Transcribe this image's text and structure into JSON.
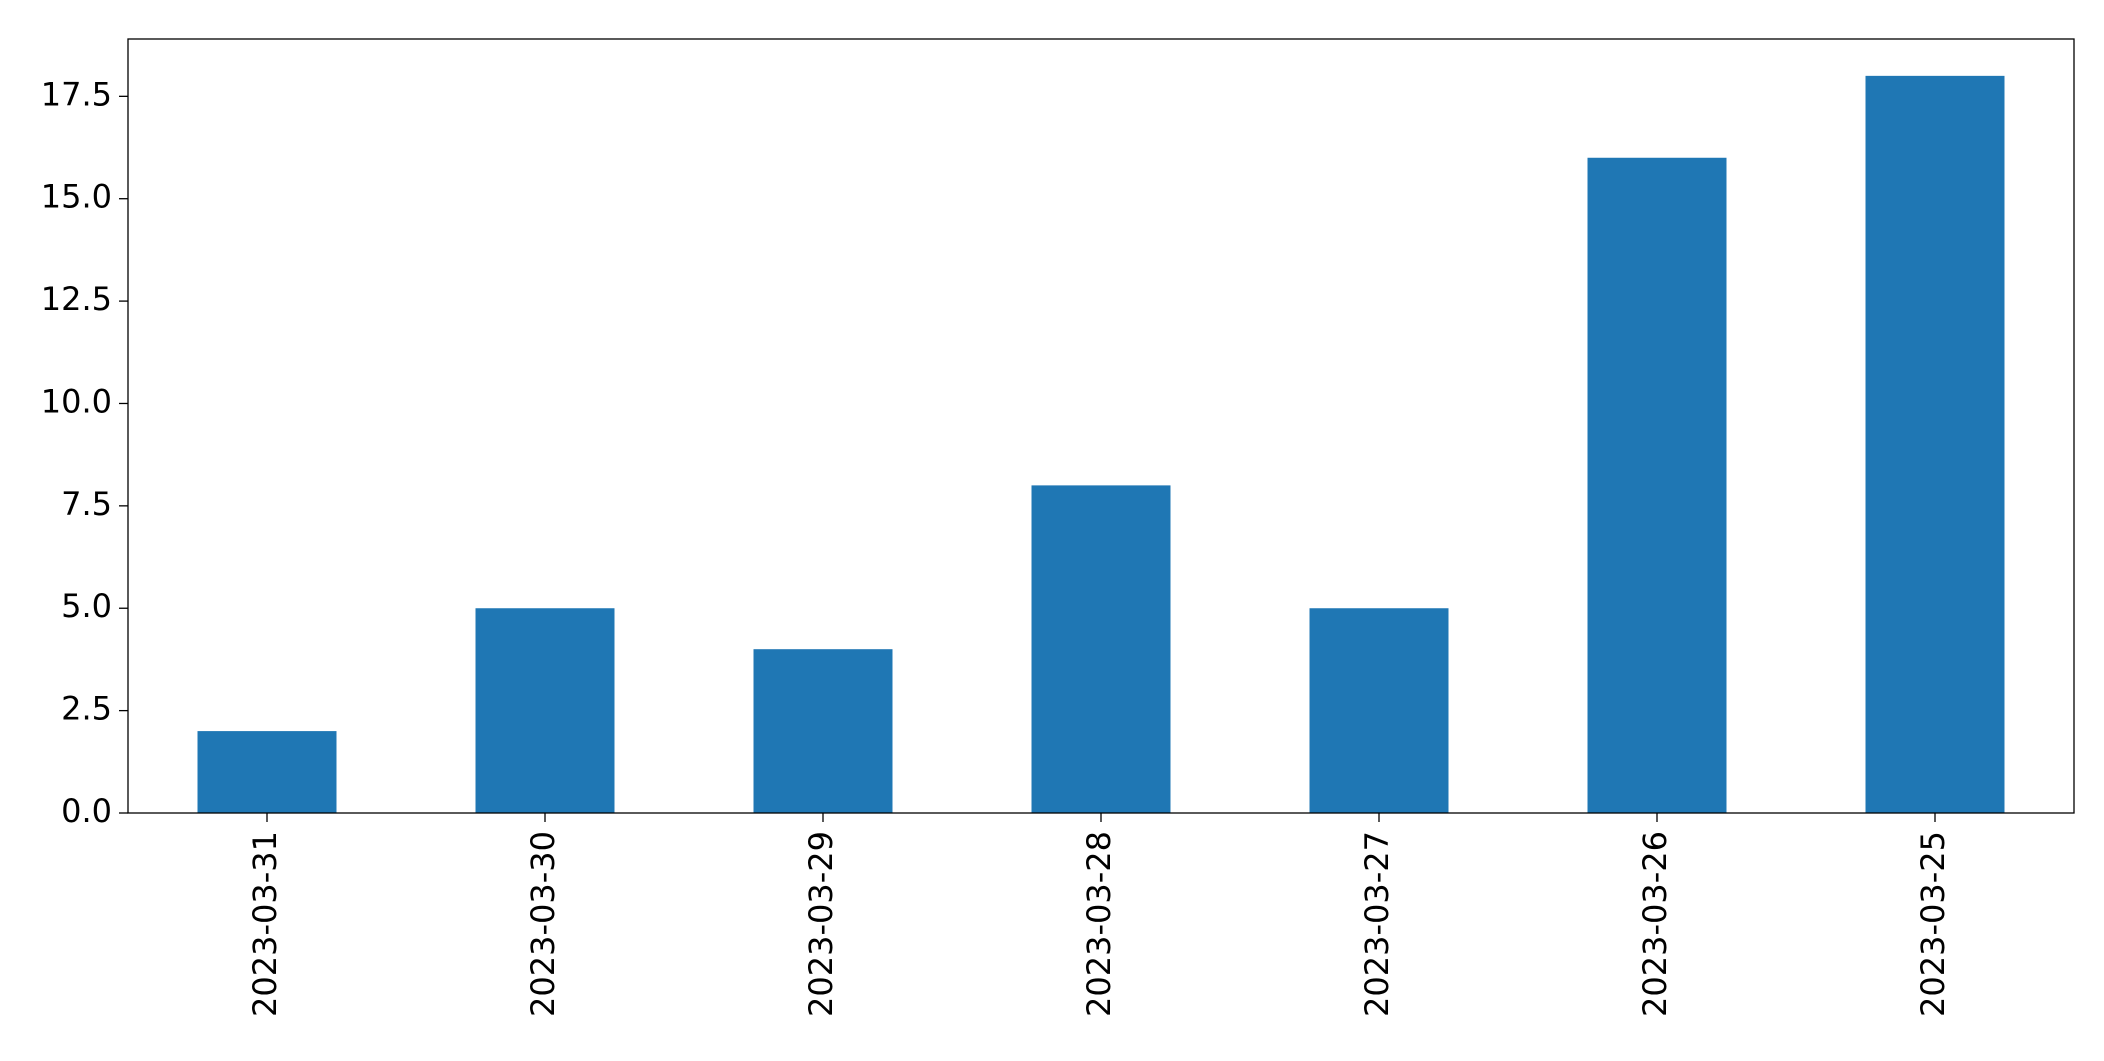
{
  "chart_data": {
    "type": "bar",
    "categories": [
      "2023-03-31",
      "2023-03-30",
      "2023-03-29",
      "2023-03-28",
      "2023-03-27",
      "2023-03-26",
      "2023-03-25"
    ],
    "values": [
      2,
      5,
      4,
      8,
      5,
      16,
      18
    ],
    "color": "#1f77b4",
    "ylim": [
      0,
      18.9
    ],
    "yticks": [
      {
        "value": 0,
        "label": "0.0"
      },
      2.5,
      {
        "value": 5,
        "label": "5.0"
      },
      7.5,
      {
        "value": 10,
        "label": "10.0"
      },
      12.5,
      {
        "value": 15,
        "label": "15.0"
      },
      17.5
    ],
    "grid": false
  }
}
